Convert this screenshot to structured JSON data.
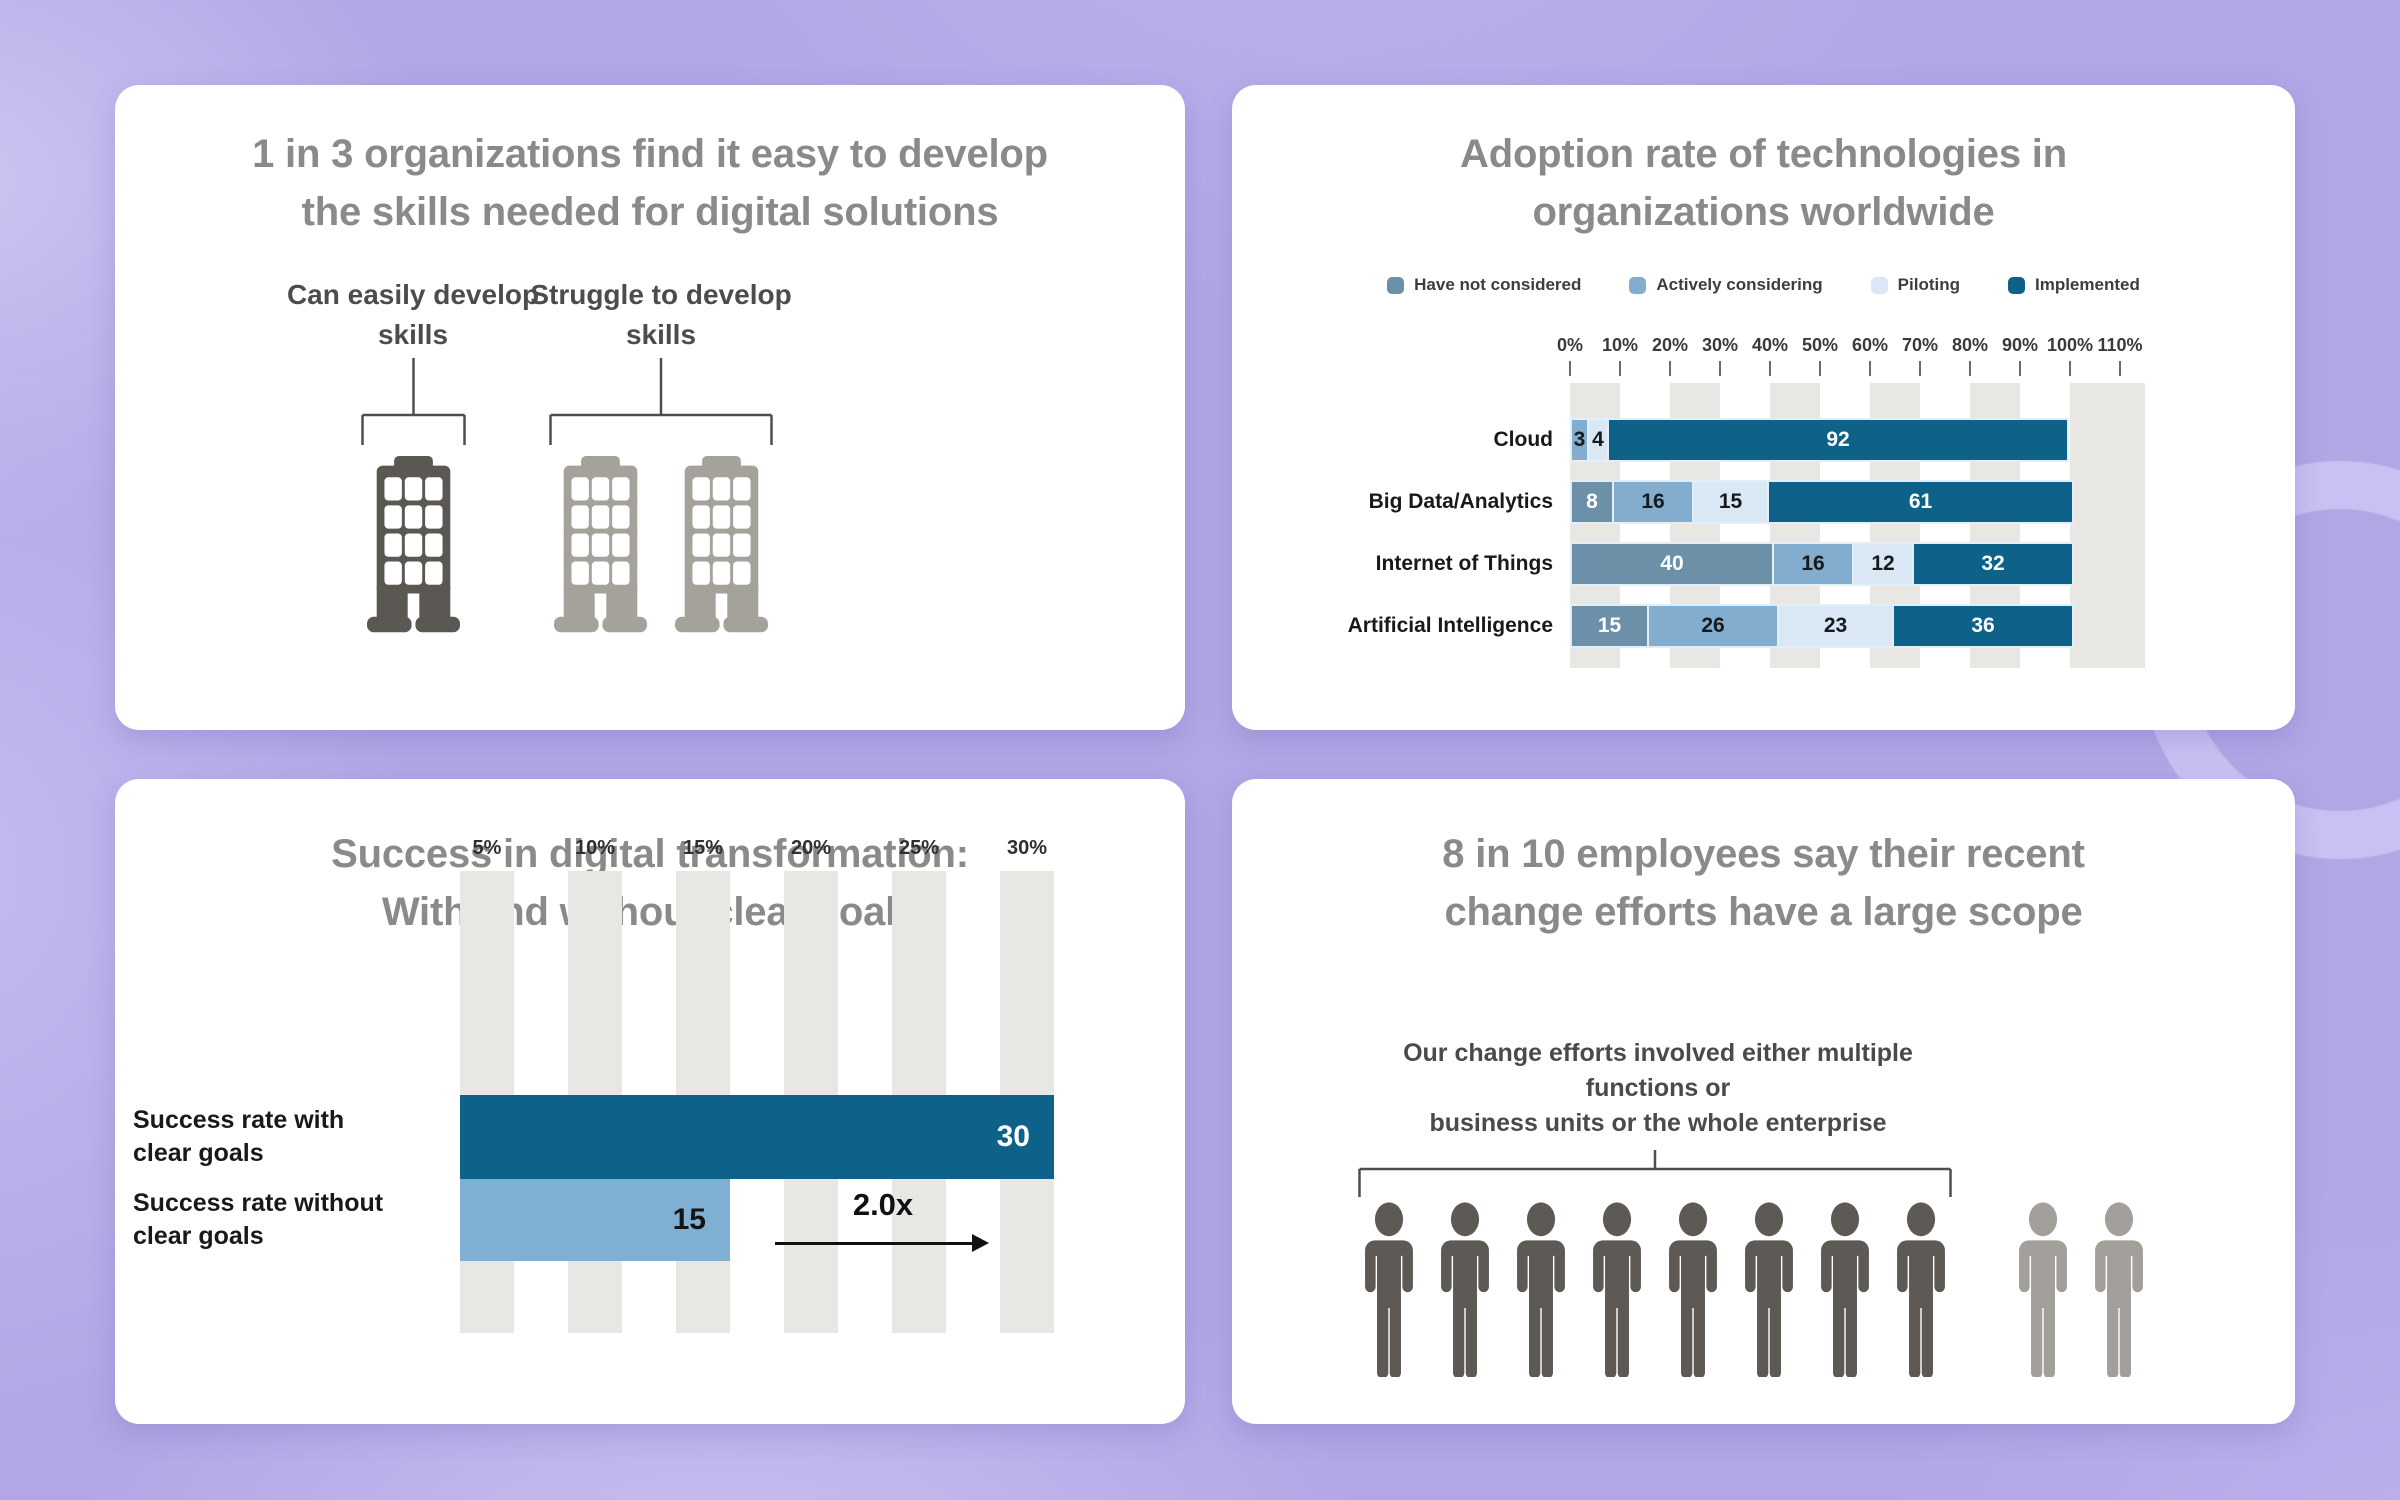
{
  "page": {
    "background_color": "#b1a7e5",
    "card_color": "#ffffff"
  },
  "skills": {
    "title_lines": [
      "1 in 3 organizations find it easy to develop",
      "the skills needed for digital solutions"
    ],
    "groups": [
      {
        "name": "can-easily-develop",
        "label_lines": [
          "Can easily develop",
          "skills"
        ],
        "count": 1,
        "color": "#5b5752"
      },
      {
        "name": "struggle-to-develop",
        "label_lines": [
          "Struggle to develop",
          "skills"
        ],
        "count": 2,
        "color": "#a5a19b"
      }
    ]
  },
  "adoption": {
    "title_lines": [
      "Adoption rate of technologies in",
      "organizations worldwide"
    ],
    "legend": [
      {
        "key": "not_considered",
        "label": "Have not considered",
        "color": "#6b90a7"
      },
      {
        "key": "actively_considering",
        "label": "Actively considering",
        "color": "#83adcf"
      },
      {
        "key": "piloting",
        "label": "Piloting",
        "color": "#d9e8f4"
      },
      {
        "key": "implemented",
        "label": "Implemented",
        "color": "#0e6289"
      }
    ],
    "axis_ticks": [
      "0%",
      "10%",
      "20%",
      "30%",
      "40%",
      "50%",
      "60%",
      "70%",
      "80%",
      "90%",
      "100%",
      "110%"
    ],
    "rows": [
      {
        "label": "Cloud",
        "segments": [
          {
            "key": "actively_considering",
            "value": 3
          },
          {
            "key": "piloting",
            "value": 4
          },
          {
            "key": "implemented",
            "value": 92
          }
        ]
      },
      {
        "label": "Big Data/Analytics",
        "segments": [
          {
            "key": "not_considered",
            "value": 8
          },
          {
            "key": "actively_considering",
            "value": 16
          },
          {
            "key": "piloting",
            "value": 15
          },
          {
            "key": "implemented",
            "value": 61
          }
        ]
      },
      {
        "label": "Internet of Things",
        "segments": [
          {
            "key": "not_considered",
            "value": 40
          },
          {
            "key": "actively_considering",
            "value": 16
          },
          {
            "key": "piloting",
            "value": 12
          },
          {
            "key": "implemented",
            "value": 32
          }
        ]
      },
      {
        "label": "Artificial Intelligence",
        "segments": [
          {
            "key": "not_considered",
            "value": 15
          },
          {
            "key": "actively_considering",
            "value": 26
          },
          {
            "key": "piloting",
            "value": 23
          },
          {
            "key": "implemented",
            "value": 36
          }
        ]
      }
    ]
  },
  "success": {
    "title_lines": [
      "Success in digital transformation:",
      "With and without clear goals"
    ],
    "x_ticks": [
      "5%",
      "10%",
      "15%",
      "20%",
      "25%",
      "30%"
    ],
    "bars": [
      {
        "label_lines": [
          "Success rate with",
          "clear goals"
        ],
        "value": 30,
        "color": "#0e6289",
        "text_color": "#ffffff"
      },
      {
        "label_lines": [
          "Success rate without",
          "clear goals"
        ],
        "value": 15,
        "color": "#7fafd2",
        "text_color": "#141414"
      }
    ],
    "annotation": "2.0x"
  },
  "scope": {
    "title_lines": [
      "8 in 10 employees say their recent",
      "change efforts have a large scope"
    ],
    "subtitle_lines": [
      "Our change efforts involved either multiple functions or",
      "business units or the whole enterprise"
    ],
    "highlighted_count": 8,
    "other_count": 2,
    "highlight_color": "#5d5a55",
    "other_color": "#a3a09b"
  },
  "chart_data": [
    {
      "type": "pictogram",
      "title": "1 in 3 organizations find it easy to develop the skills needed for digital solutions",
      "categories": [
        "Can easily develop skills",
        "Struggle to develop skills"
      ],
      "values": [
        1,
        2
      ],
      "unit": "organizations out of 3",
      "icon": "office-building"
    },
    {
      "type": "bar",
      "subtype": "stacked-horizontal",
      "title": "Adoption rate of technologies in organizations worldwide",
      "categories": [
        "Cloud",
        "Big Data/Analytics",
        "Internet of Things",
        "Artificial Intelligence"
      ],
      "series": [
        {
          "name": "Have not considered",
          "values": [
            0,
            8,
            40,
            15
          ]
        },
        {
          "name": "Actively considering",
          "values": [
            3,
            16,
            16,
            26
          ]
        },
        {
          "name": "Piloting",
          "values": [
            4,
            15,
            12,
            23
          ]
        },
        {
          "name": "Implemented",
          "values": [
            92,
            61,
            32,
            36
          ]
        }
      ],
      "xlabel": "",
      "ylabel": "",
      "xlim": [
        0,
        110
      ],
      "x_ticks": [
        "0%",
        "10%",
        "20%",
        "30%",
        "40%",
        "50%",
        "60%",
        "70%",
        "80%",
        "90%",
        "100%",
        "110%"
      ],
      "legend_position": "top",
      "grid": "alternating-vertical-bands"
    },
    {
      "type": "bar",
      "subtype": "horizontal",
      "title": "Success in digital transformation: With and without clear goals",
      "categories": [
        "Success rate with clear goals",
        "Success rate without clear goals"
      ],
      "values": [
        30,
        15
      ],
      "x_ticks": [
        "5%",
        "10%",
        "15%",
        "20%",
        "25%",
        "30%"
      ],
      "xlim": [
        0,
        30
      ],
      "annotation": "2.0x",
      "grid": "alternating-vertical-bands"
    },
    {
      "type": "pictogram",
      "title": "8 in 10 employees say their recent change efforts have a large scope",
      "subtitle": "Our change efforts involved either multiple functions or business units or the whole enterprise",
      "highlighted": 8,
      "total": 10,
      "icon": "person"
    }
  ]
}
